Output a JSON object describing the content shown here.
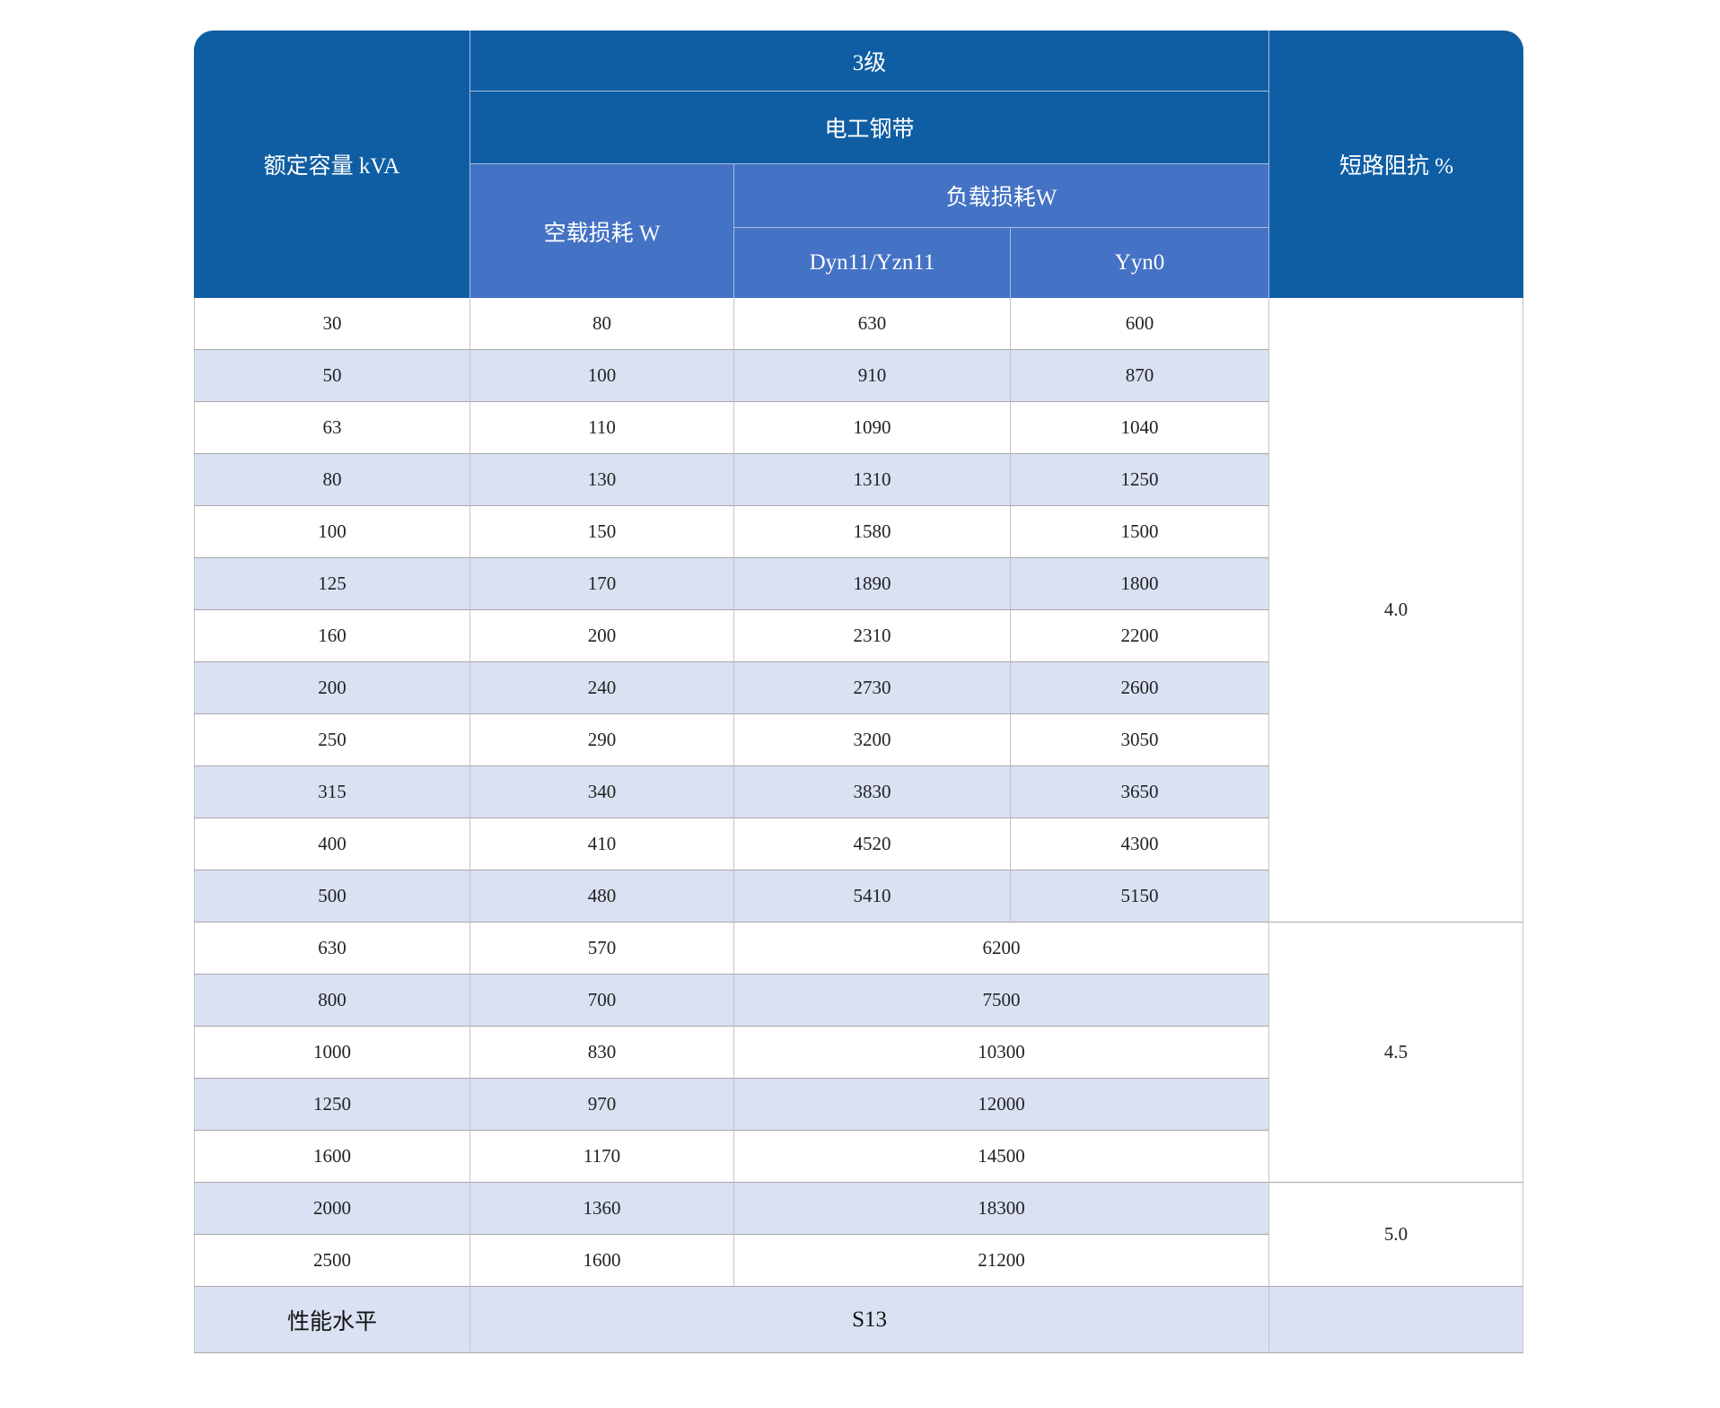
{
  "colors": {
    "header_dark": "#0f5ea3",
    "header_mid": "#4472c4",
    "stripe": "#d9e1f2"
  },
  "header": {
    "capacity": "额定容量 kVA",
    "grade": "3级",
    "material": "电工钢带",
    "no_load_loss": "空载损耗 W",
    "load_loss": "负载损耗W",
    "dyn": "Dyn11/Yzn11",
    "yyn": "Yyn0",
    "impedance": "短路阻抗 %"
  },
  "rows": [
    {
      "capacity": "30",
      "no_load": "80",
      "dyn": "630",
      "yyn": "600",
      "impedance": "4.0"
    },
    {
      "capacity": "50",
      "no_load": "100",
      "dyn": "910",
      "yyn": "870",
      "impedance": "4.0"
    },
    {
      "capacity": "63",
      "no_load": "110",
      "dyn": "1090",
      "yyn": "1040",
      "impedance": "4.0"
    },
    {
      "capacity": "80",
      "no_load": "130",
      "dyn": "1310",
      "yyn": "1250",
      "impedance": "4.0"
    },
    {
      "capacity": "100",
      "no_load": "150",
      "dyn": "1580",
      "yyn": "1500",
      "impedance": "4.0"
    },
    {
      "capacity": "125",
      "no_load": "170",
      "dyn": "1890",
      "yyn": "1800",
      "impedance": "4.0"
    },
    {
      "capacity": "160",
      "no_load": "200",
      "dyn": "2310",
      "yyn": "2200",
      "impedance": "4.0"
    },
    {
      "capacity": "200",
      "no_load": "240",
      "dyn": "2730",
      "yyn": "2600",
      "impedance": "4.0"
    },
    {
      "capacity": "250",
      "no_load": "290",
      "dyn": "3200",
      "yyn": "3050",
      "impedance": "4.0"
    },
    {
      "capacity": "315",
      "no_load": "340",
      "dyn": "3830",
      "yyn": "3650",
      "impedance": "4.0"
    },
    {
      "capacity": "400",
      "no_load": "410",
      "dyn": "4520",
      "yyn": "4300",
      "impedance": "4.0"
    },
    {
      "capacity": "500",
      "no_load": "480",
      "dyn": "5410",
      "yyn": "5150",
      "impedance": "4.0"
    },
    {
      "capacity": "630",
      "no_load": "570",
      "load": "6200",
      "impedance": "4.5"
    },
    {
      "capacity": "800",
      "no_load": "700",
      "load": "7500",
      "impedance": "4.5"
    },
    {
      "capacity": "1000",
      "no_load": "830",
      "load": "10300",
      "impedance": "4.5"
    },
    {
      "capacity": "1250",
      "no_load": "970",
      "load": "12000",
      "impedance": "4.5"
    },
    {
      "capacity": "1600",
      "no_load": "1170",
      "load": "14500",
      "impedance": "4.5"
    },
    {
      "capacity": "2000",
      "no_load": "1360",
      "load": "18300",
      "impedance": "5.0"
    },
    {
      "capacity": "2500",
      "no_load": "1600",
      "load": "21200",
      "impedance": "5.0"
    }
  ],
  "footer": {
    "label": "性能水平",
    "value": "S13",
    "impedance": ""
  }
}
